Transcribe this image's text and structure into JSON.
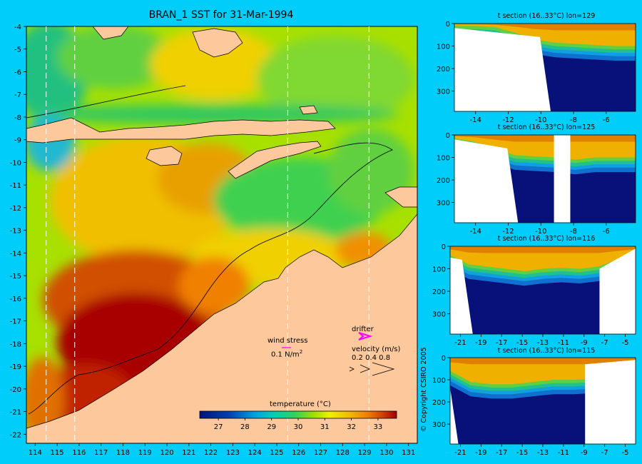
{
  "title": "BRAN_1 SST for 31-Mar-1994",
  "colors": {
    "background": "#00cdf9",
    "land": "#fdc89b",
    "ramp": [
      "#00147a",
      "#0040b0",
      "#00a0e0",
      "#00d0b0",
      "#30d060",
      "#a0e000",
      "#f0f000",
      "#f0c000",
      "#f08000",
      "#d04000",
      "#a00000"
    ]
  },
  "map": {
    "x_ticks": [
      "114",
      "115",
      "116",
      "117",
      "118",
      "119",
      "120",
      "121",
      "122",
      "123",
      "124",
      "125",
      "126",
      "127",
      "128",
      "129",
      "130",
      "131"
    ],
    "y_ticks": [
      "-4",
      "-5",
      "-6",
      "-7",
      "-8",
      "-9",
      "-10",
      "-11",
      "-12",
      "-13",
      "-14",
      "-15",
      "-16",
      "-17",
      "-18",
      "-19",
      "-20",
      "-21",
      "-22"
    ],
    "section_lons": [
      114.5,
      115.8,
      125.5,
      129.2
    ],
    "legend": {
      "wind_label": "wind stress",
      "wind_scale": "0.1 N/m",
      "wind_scale_sup": "2",
      "drifter_label": "drifter",
      "velocity_label": "velocity (m/s)",
      "velocity_values": "0.2 0.4 0.8"
    },
    "colorbar": {
      "title": "temperature (°C)",
      "ticks": [
        "27",
        "28",
        "29",
        "30",
        "31",
        "32",
        "33"
      ]
    }
  },
  "chart_data": [
    {
      "type": "heatmap",
      "title": "BRAN_1 SST for 31-Mar-1994",
      "x_ticks": [
        114,
        115,
        116,
        117,
        118,
        119,
        120,
        121,
        122,
        123,
        124,
        125,
        126,
        127,
        128,
        129,
        130,
        131
      ],
      "y_ticks": [
        -4,
        -5,
        -6,
        -7,
        -8,
        -9,
        -10,
        -11,
        -12,
        -13,
        -14,
        -15,
        -16,
        -17,
        -18,
        -19,
        -20,
        -21,
        -22
      ],
      "xlim": [
        113.6,
        131.4
      ],
      "ylim": [
        -22.4,
        -4
      ],
      "colorbar": {
        "label": "temperature (°C)",
        "ticks": [
          27,
          28,
          29,
          30,
          31,
          32,
          33
        ],
        "range": [
          26.3,
          33.7
        ]
      }
    },
    {
      "type": "heatmap",
      "title": "t section (16..33°C) lon=129",
      "x_ticks": [
        -14,
        -12,
        -10,
        -8,
        -6
      ],
      "y_ticks": [
        0,
        100,
        200,
        300
      ],
      "xlim": [
        -15.3,
        -4.2
      ],
      "ylim": [
        390,
        0
      ],
      "mixed_layer_depth": [
        10,
        10,
        15,
        40,
        70,
        85,
        90,
        95,
        100,
        100
      ],
      "land_until": -9.4
    },
    {
      "type": "heatmap",
      "title": "t section (16..33°C) lon=125",
      "x_ticks": [
        -14,
        -12,
        -10,
        -8,
        -6
      ],
      "y_ticks": [
        0,
        100,
        200,
        300
      ],
      "xlim": [
        -15.3,
        -4.2
      ],
      "ylim": [
        390,
        0
      ],
      "mixed_layer_depth": [
        15,
        30,
        60,
        90,
        95,
        100,
        110,
        100,
        100,
        100
      ],
      "land_until": -11.4,
      "land_gap": [
        -9.2,
        -8.2
      ]
    },
    {
      "type": "heatmap",
      "title": "t section (16..33°C) lon=116",
      "x_ticks": [
        -21,
        -19,
        -17,
        -15,
        -13,
        -11,
        -9,
        -7,
        -5
      ],
      "y_ticks": [
        0,
        100,
        200,
        300
      ],
      "xlim": [
        -22,
        -4
      ],
      "ylim": [
        390,
        0
      ],
      "mixed_layer_depth": [
        40,
        80,
        90,
        100,
        110,
        100,
        95,
        100,
        90,
        60,
        40
      ],
      "land_until": -19.8,
      "land_after": -7.5
    },
    {
      "type": "heatmap",
      "title": "t section (16..33°C) lon=115",
      "x_ticks": [
        -21,
        -19,
        -17,
        -15,
        -13,
        -11,
        -9,
        -7,
        -5
      ],
      "y_ticks": [
        0,
        100,
        200,
        300
      ],
      "xlim": [
        -22,
        -4
      ],
      "ylim": [
        390,
        0
      ],
      "mixed_layer_depth": [
        60,
        110,
        120,
        120,
        110,
        100,
        100,
        95,
        90,
        40
      ],
      "land_until": -21.2,
      "land_after": -8.9
    }
  ],
  "sections": [
    {
      "title": "t section (16..33°C) lon=129",
      "x_ticks": [
        "-14",
        "-12",
        "-10",
        "-8",
        "-6"
      ],
      "y_ticks": [
        "0",
        "100",
        "200",
        "300"
      ]
    },
    {
      "title": "t section (16..33°C) lon=125",
      "x_ticks": [
        "-14",
        "-12",
        "-10",
        "-8",
        "-6"
      ],
      "y_ticks": [
        "0",
        "100",
        "200",
        "300"
      ]
    },
    {
      "title": "t section (16..33°C) lon=116",
      "x_ticks": [
        "-21",
        "-19",
        "-17",
        "-15",
        "-13",
        "-11",
        "-9",
        "-7",
        "-5"
      ],
      "y_ticks": [
        "0",
        "100",
        "200",
        "300"
      ]
    },
    {
      "title": "t section (16..33°C) lon=115",
      "x_ticks": [
        "-21",
        "-19",
        "-17",
        "-15",
        "-13",
        "-11",
        "-9",
        "-7",
        "-5"
      ],
      "y_ticks": [
        "0",
        "100",
        "200",
        "300"
      ]
    }
  ],
  "copyright": "© Copyright CSIRO 2005"
}
